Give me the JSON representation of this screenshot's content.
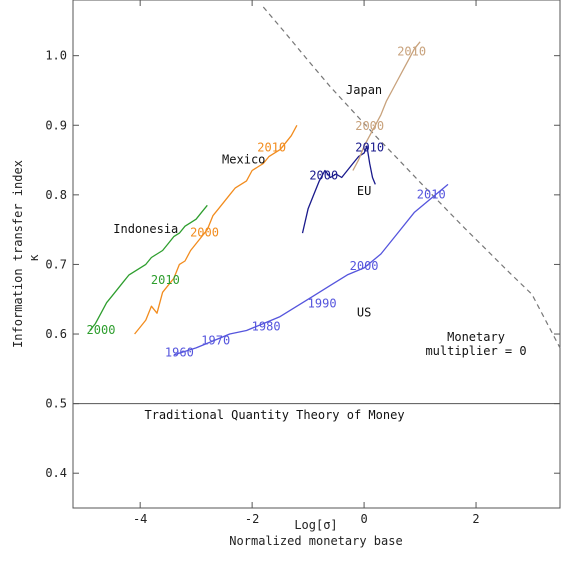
{
  "chart_data": {
    "type": "line",
    "title": "",
    "xlabel": "Log[σ]",
    "xlabel2": "Normalized monetary base",
    "ylabel": "Information transfer index",
    "ylabel2": "κ",
    "xlim": [
      -5.2,
      3.5
    ],
    "ylim": [
      0.35,
      1.08
    ],
    "xticks": [
      -4,
      -2,
      0,
      2
    ],
    "yticks": [
      0.4,
      0.5,
      0.6,
      0.7,
      0.8,
      0.9,
      1.0
    ],
    "xtick_labels": [
      "-4",
      "-2",
      "0",
      "2"
    ],
    "ytick_labels": [
      "0.4",
      "0.5",
      "0.6",
      "0.7",
      "0.8",
      "0.9",
      "1.0"
    ],
    "grid": false,
    "reference_lines": [
      {
        "name": "Traditional Quantity Theory of Money",
        "y": 0.5,
        "style": "solid",
        "color": "#555555"
      },
      {
        "name": "Monetary multiplier = 0",
        "style": "dashed",
        "color": "#777777",
        "x": [
          -1.8,
          -1.4,
          -1.0,
          -0.6,
          -0.2,
          0.2,
          0.6,
          1.0,
          1.4,
          1.8,
          2.2,
          2.6,
          3.0,
          3.5
        ],
        "y": [
          1.07,
          1.032,
          0.993,
          0.955,
          0.92,
          0.885,
          0.852,
          0.818,
          0.785,
          0.752,
          0.72,
          0.688,
          0.657,
          0.58
        ]
      }
    ],
    "series": [
      {
        "name": "US",
        "color": "#5555dd",
        "x": [
          -3.4,
          -3.2,
          -3.0,
          -2.7,
          -2.4,
          -2.1,
          -1.8,
          -1.5,
          -1.2,
          -0.9,
          -0.6,
          -0.3,
          0.0,
          0.3,
          0.6,
          0.9,
          1.2,
          1.5
        ],
        "y": [
          0.57,
          0.575,
          0.58,
          0.59,
          0.6,
          0.605,
          0.615,
          0.625,
          0.64,
          0.655,
          0.67,
          0.685,
          0.695,
          0.715,
          0.745,
          0.775,
          0.795,
          0.815
        ]
      },
      {
        "name": "EU",
        "color": "#1a1a8c",
        "x": [
          -1.1,
          -1.0,
          -0.9,
          -0.8,
          -0.7,
          -0.6,
          -0.5,
          -0.4,
          -0.3,
          -0.2,
          -0.1,
          0.0,
          0.05,
          0.1,
          0.15,
          0.2
        ],
        "y": [
          0.745,
          0.78,
          0.8,
          0.82,
          0.835,
          0.825,
          0.83,
          0.825,
          0.835,
          0.845,
          0.855,
          0.86,
          0.87,
          0.845,
          0.825,
          0.815
        ]
      },
      {
        "name": "Japan",
        "color": "#c8a27c",
        "x": [
          -0.2,
          -0.1,
          0.0,
          0.1,
          0.2,
          0.3,
          0.4,
          0.5,
          0.6,
          0.7,
          0.8,
          0.9,
          1.0
        ],
        "y": [
          0.835,
          0.85,
          0.87,
          0.885,
          0.9,
          0.915,
          0.935,
          0.95,
          0.965,
          0.98,
          0.995,
          1.01,
          1.02
        ]
      },
      {
        "name": "Mexico",
        "color": "#f28c1e",
        "x": [
          -4.1,
          -4.0,
          -3.9,
          -3.8,
          -3.7,
          -3.6,
          -3.5,
          -3.4,
          -3.3,
          -3.2,
          -3.1,
          -3.0,
          -2.9,
          -2.8,
          -2.7,
          -2.6,
          -2.5,
          -2.4,
          -2.3,
          -2.2,
          -2.1,
          -2.0,
          -1.9,
          -1.8,
          -1.7,
          -1.6,
          -1.5,
          -1.4,
          -1.3,
          -1.2
        ],
        "y": [
          0.6,
          0.61,
          0.62,
          0.64,
          0.63,
          0.66,
          0.67,
          0.68,
          0.7,
          0.705,
          0.72,
          0.73,
          0.74,
          0.75,
          0.77,
          0.78,
          0.79,
          0.8,
          0.81,
          0.815,
          0.82,
          0.835,
          0.84,
          0.845,
          0.855,
          0.86,
          0.865,
          0.875,
          0.885,
          0.9
        ]
      },
      {
        "name": "Indonesia",
        "color": "#2e9e2e",
        "x": [
          -4.9,
          -4.8,
          -4.7,
          -4.6,
          -4.5,
          -4.4,
          -4.3,
          -4.2,
          -4.1,
          -4.0,
          -3.9,
          -3.8,
          -3.7,
          -3.6,
          -3.5,
          -3.4,
          -3.3,
          -3.2,
          -3.1,
          -3.0,
          -2.9,
          -2.8
        ],
        "y": [
          0.605,
          0.615,
          0.63,
          0.645,
          0.655,
          0.665,
          0.675,
          0.685,
          0.69,
          0.695,
          0.7,
          0.71,
          0.715,
          0.72,
          0.73,
          0.74,
          0.745,
          0.755,
          0.76,
          0.765,
          0.775,
          0.785
        ]
      }
    ],
    "annotations": [
      {
        "text": "Japan",
        "x": 0.0,
        "y": 0.945,
        "color": "#111111"
      },
      {
        "text": "Mexico",
        "x": -2.15,
        "y": 0.845,
        "color": "#111111"
      },
      {
        "text": "Indonesia",
        "x": -3.9,
        "y": 0.745,
        "color": "#111111"
      },
      {
        "text": "EU",
        "x": 0.0,
        "y": 0.8,
        "color": "#111111"
      },
      {
        "text": "US",
        "x": 0.0,
        "y": 0.625,
        "color": "#111111"
      },
      {
        "text": "Monetary",
        "x": 2.0,
        "y": 0.59,
        "color": "#111111"
      },
      {
        "text": "multiplier = 0",
        "x": 2.0,
        "y": 0.57,
        "color": "#111111"
      },
      {
        "text": "Traditional Quantity Theory of Money",
        "x": -1.6,
        "y": 0.478,
        "color": "#111111"
      }
    ],
    "year_labels": [
      {
        "text": "2010",
        "x": 0.85,
        "y": 1.0,
        "color": "#c8a27c"
      },
      {
        "text": "2000",
        "x": 0.1,
        "y": 0.893,
        "color": "#c8a27c"
      },
      {
        "text": "2010",
        "x": 0.1,
        "y": 0.862,
        "color": "#1a1a8c"
      },
      {
        "text": "2000",
        "x": -0.72,
        "y": 0.822,
        "color": "#1a1a8c"
      },
      {
        "text": "2010",
        "x": -1.65,
        "y": 0.862,
        "color": "#f28c1e"
      },
      {
        "text": "2000",
        "x": -2.85,
        "y": 0.74,
        "color": "#f28c1e"
      },
      {
        "text": "2010",
        "x": -3.55,
        "y": 0.672,
        "color": "#2e9e2e"
      },
      {
        "text": "2000",
        "x": -4.7,
        "y": 0.6,
        "color": "#2e9e2e"
      },
      {
        "text": "2010",
        "x": 1.2,
        "y": 0.795,
        "color": "#5555dd"
      },
      {
        "text": "2000",
        "x": 0.0,
        "y": 0.692,
        "color": "#5555dd"
      },
      {
        "text": "1990",
        "x": -0.75,
        "y": 0.638,
        "color": "#5555dd"
      },
      {
        "text": "1980",
        "x": -1.75,
        "y": 0.605,
        "color": "#5555dd"
      },
      {
        "text": "1970",
        "x": -2.65,
        "y": 0.585,
        "color": "#5555dd"
      },
      {
        "text": "1960",
        "x": -3.3,
        "y": 0.568,
        "color": "#5555dd"
      }
    ]
  }
}
